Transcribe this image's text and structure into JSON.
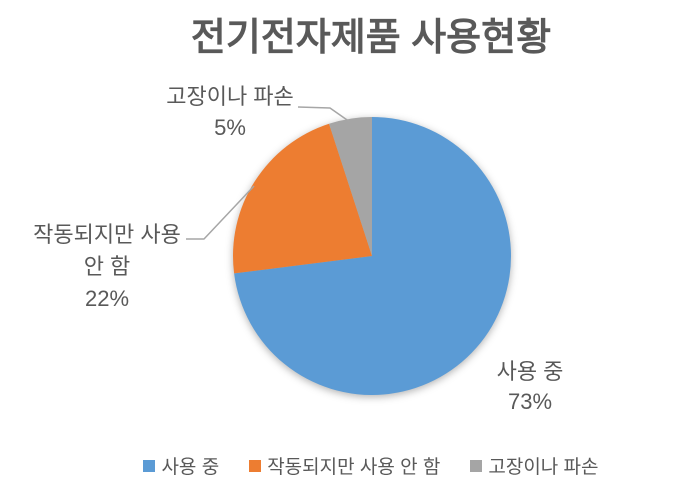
{
  "chart_data": {
    "type": "pie",
    "title": "전기전자제품 사용현황",
    "categories": [
      "사용 중",
      "작동되지만 사용 안 함",
      "고장이나 파손"
    ],
    "values": [
      73,
      22,
      5
    ],
    "unit": "%",
    "colors": [
      "#5B9BD5",
      "#ED7D31",
      "#A5A5A5"
    ],
    "start_angle_deg": 0,
    "direction": "clockwise",
    "legend_position": "bottom",
    "grid": false,
    "data_labels": [
      {
        "lines": [
          "사용 중",
          "73%"
        ]
      },
      {
        "lines": [
          "작동되지만 사용",
          "안 함",
          "22%"
        ]
      },
      {
        "lines": [
          "고장이나 파손",
          "5%"
        ]
      }
    ]
  },
  "styles": {
    "text_color": "#595959",
    "leader_line_color": "#A6A6A6",
    "background": "#FFFFFF"
  }
}
